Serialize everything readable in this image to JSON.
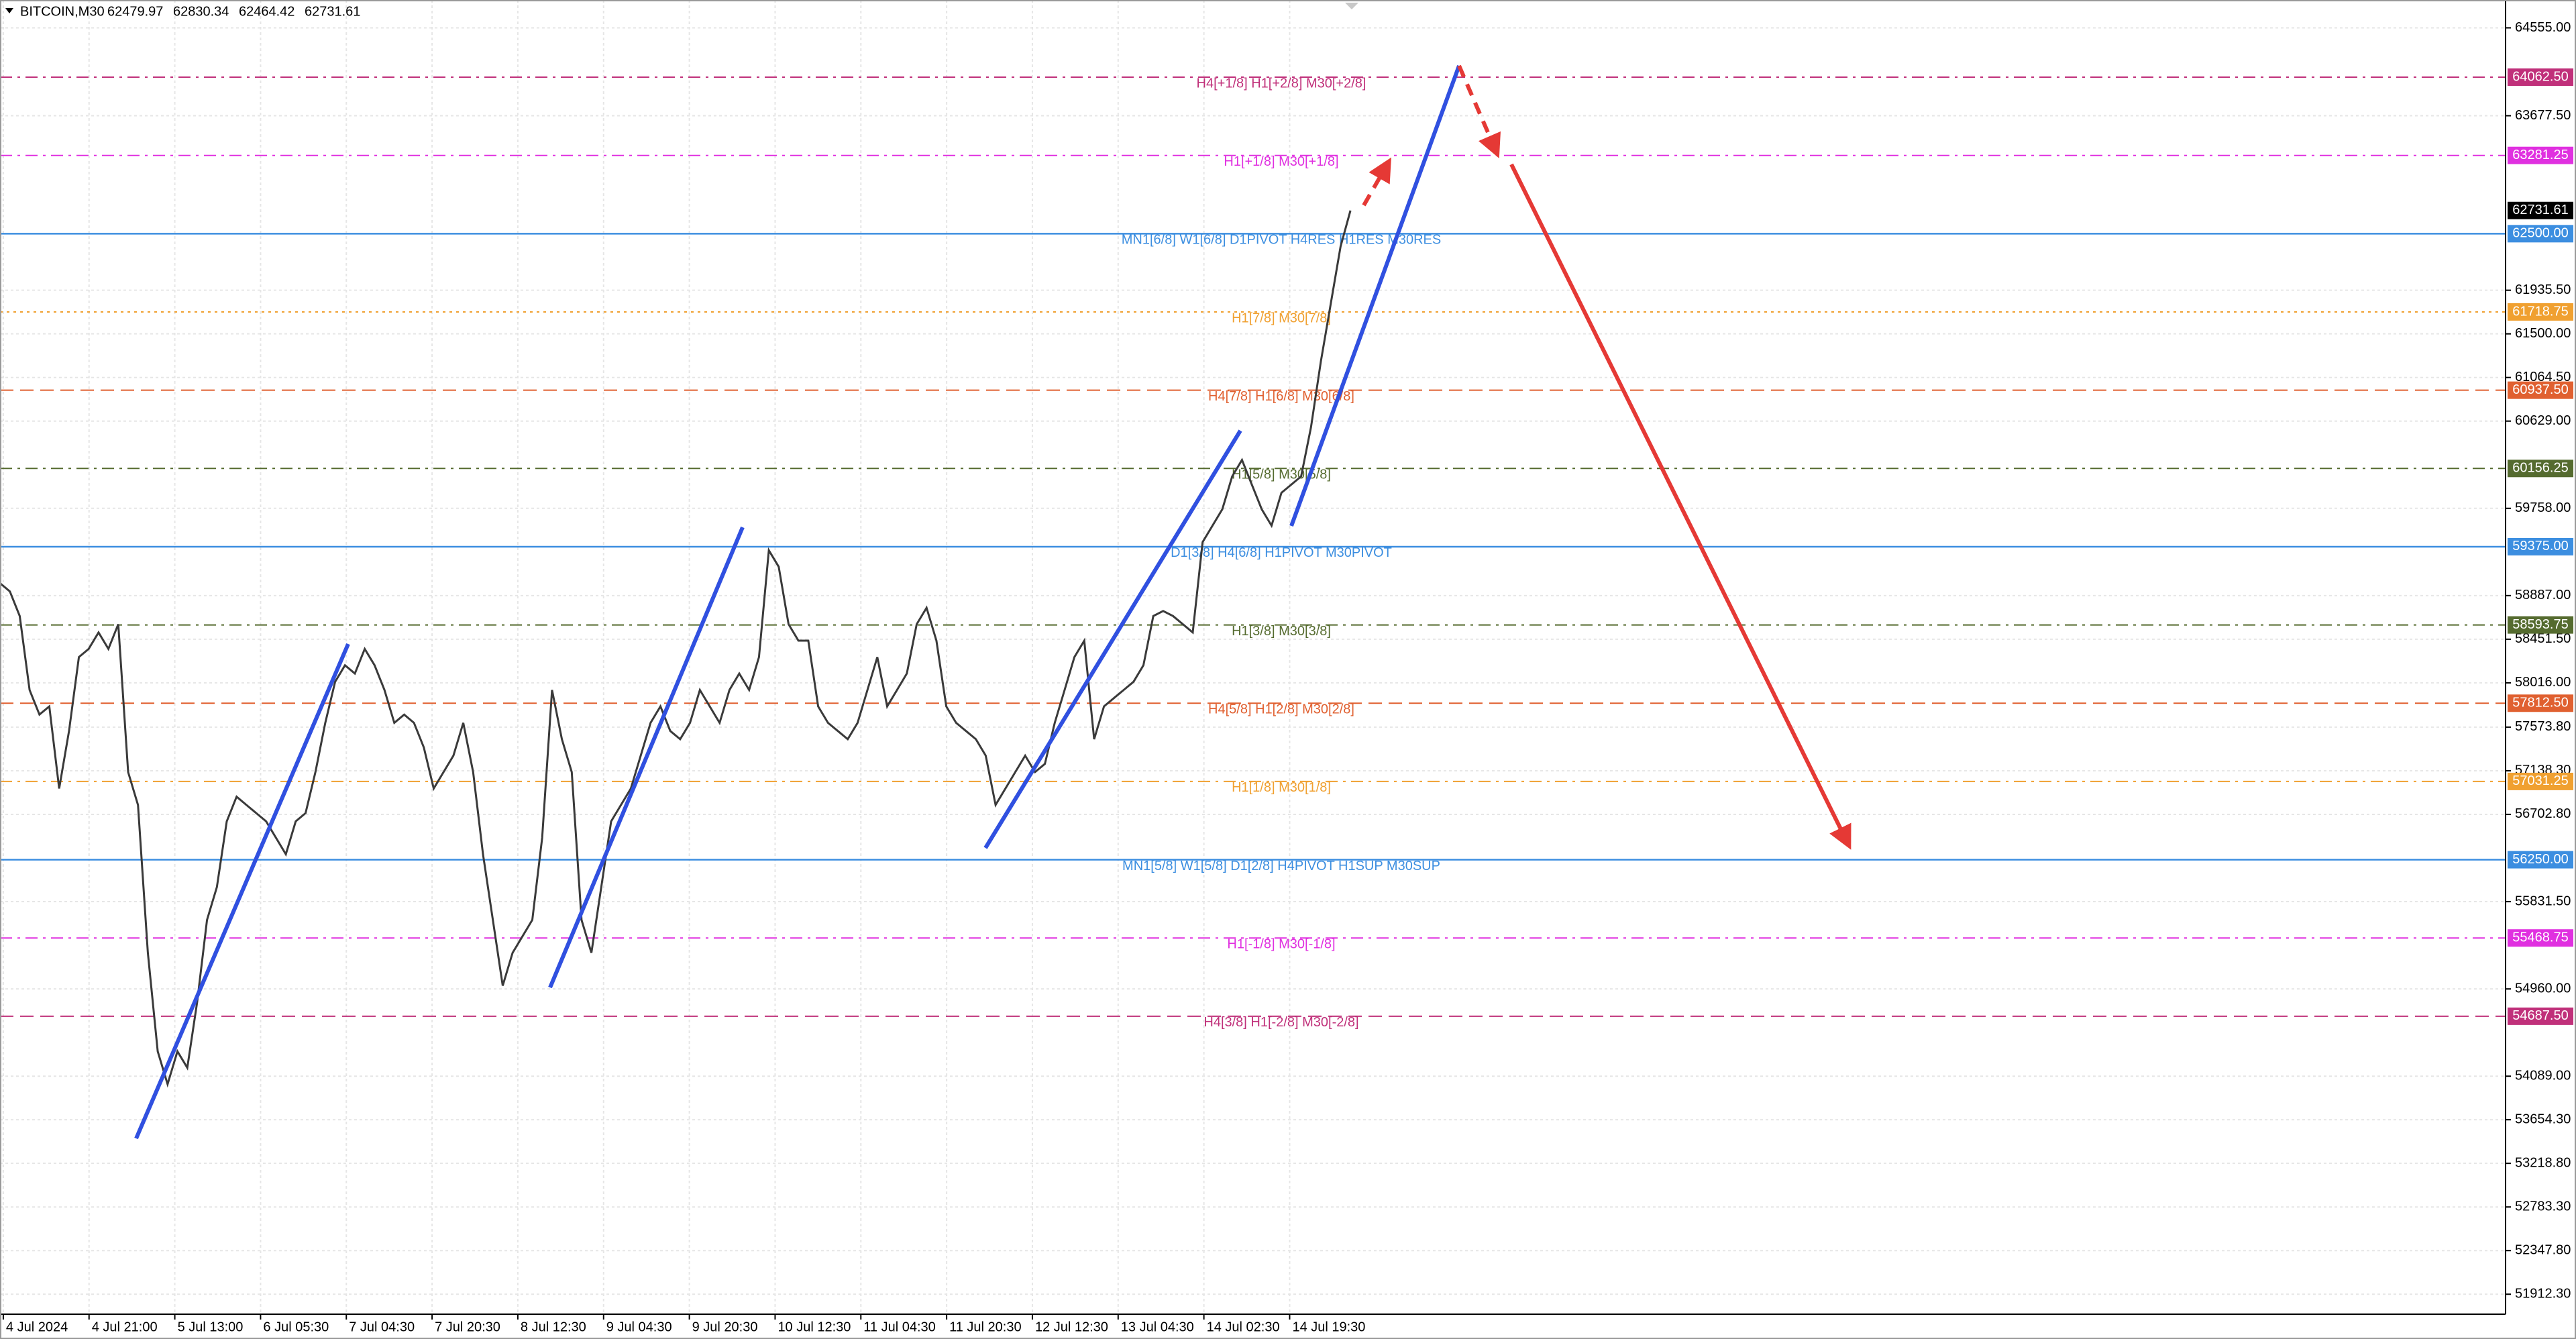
{
  "chart_data": {
    "type": "line",
    "symbol": "BITCOIN,M30",
    "ohlc": [
      62479.97,
      62830.34,
      62464.42,
      62731.61
    ],
    "series": [
      {
        "name": "BITCOIN",
        "color": "#3a3a3a",
        "values": [
          59011,
          58929,
          58683,
          57945,
          57699,
          57781,
          56961,
          57535,
          58273,
          58355,
          58519,
          58355,
          58601,
          57125,
          56797,
          55321,
          54337,
          54009,
          54337,
          54173,
          54829,
          55649,
          55977,
          56633,
          56879,
          56797,
          56715,
          56633,
          56469,
          56305,
          56633,
          56715,
          57125,
          57617,
          58027,
          58191,
          58109,
          58355,
          58191,
          57945,
          57617,
          57699,
          57617,
          57371,
          56961,
          57125,
          57289,
          57617,
          57125,
          56305,
          55649,
          54993,
          55321,
          55485,
          55649,
          56469,
          57945,
          57453,
          57125,
          55649,
          55321,
          55977,
          56633,
          56797,
          56961,
          57289,
          57617,
          57781,
          57535,
          57453,
          57617,
          57945,
          57781,
          57617,
          57945,
          58109,
          57945,
          58273,
          59339,
          59175,
          58601,
          58437,
          58437,
          57781,
          57617,
          57535,
          57453,
          57617,
          57945,
          58273,
          57781,
          57945,
          58109,
          58601,
          58765,
          58437,
          57781,
          57617,
          57535,
          57453,
          57289,
          56797,
          56961,
          57125,
          57289,
          57125,
          57207,
          57617,
          57945,
          58273,
          58437,
          57453,
          57781,
          57863,
          57945,
          58027,
          58191,
          58683,
          58733,
          58683,
          58601,
          58519,
          59421,
          59585,
          59749,
          60077,
          60241,
          59995,
          59749,
          59585,
          59913,
          59995,
          60077,
          60569,
          61225,
          61799,
          62373,
          62731.61
        ]
      }
    ],
    "last_price": 62731.61,
    "last_price_label": "62731.61",
    "xticks": [
      "4 Jul 2024",
      "4 Jul 21:00",
      "5 Jul 13:00",
      "6 Jul 05:30",
      "7 Jul 04:30",
      "7 Jul 20:30",
      "8 Jul 12:30",
      "9 Jul 04:30",
      "9 Jul 20:30",
      "10 Jul 12:30",
      "11 Jul 04:30",
      "11 Jul 20:30",
      "12 Jul 12:30",
      "13 Jul 04:30",
      "14 Jul 02:30",
      "14 Jul 19:30"
    ],
    "ylim": [
      51713,
      64833
    ],
    "yticks": [
      {
        "value": 64555,
        "label": "64555.00"
      },
      {
        "value": 63677.5,
        "label": "63677.50"
      },
      {
        "value": 61935.5,
        "label": "61935.50"
      },
      {
        "value": 61500,
        "label": "61500.00"
      },
      {
        "value": 61064.5,
        "label": "61064.50"
      },
      {
        "value": 60629,
        "label": "60629.00"
      },
      {
        "value": 59758,
        "label": "59758.00"
      },
      {
        "value": 58887,
        "label": "58887.00"
      },
      {
        "value": 58451.5,
        "label": "58451.50"
      },
      {
        "value": 58016,
        "label": "58016.00"
      },
      {
        "value": 57573.8,
        "label": "57573.80"
      },
      {
        "value": 57138.3,
        "label": "57138.30"
      },
      {
        "value": 56702.8,
        "label": "56702.80"
      },
      {
        "value": 55831.5,
        "label": "55831.50"
      },
      {
        "value": 54960,
        "label": "54960.00"
      },
      {
        "value": 54089,
        "label": "54089.00"
      },
      {
        "value": 53654.3,
        "label": "53654.30"
      },
      {
        "value": 53218.8,
        "label": "53218.80"
      },
      {
        "value": 52783.3,
        "label": "52783.30"
      },
      {
        "value": 52347.8,
        "label": "52347.80"
      },
      {
        "value": 51912.3,
        "label": "51912.30"
      }
    ],
    "grid": true,
    "levels": {
      "values": [
        64062.5,
        63281.25,
        62500,
        61718.75,
        60937.5,
        60156.25,
        59375,
        58593.75,
        57812.5,
        57031.25,
        56250,
        55468.75,
        54687.5
      ],
      "value_labels": [
        "64062.50",
        "63281.25",
        "62500.00",
        "61718.75",
        "60937.50",
        "60156.25",
        "59375.00",
        "58593.75",
        "57812.50",
        "57031.25",
        "56250.00",
        "55468.75",
        "54687.50"
      ],
      "labels": [
        "H4[+1/8] H1[+2/8] M30[+2/8]",
        "H1[+1/8] M30[+1/8]",
        "MN1[6/8] W1[6/8] D1PIVOT H4RES H1RES M30RES",
        "H1[7/8] M30[7/8]",
        "H4[7/8] H1[6/8] M30[6/8]",
        "H1[5/8] M30[5/8]",
        "D1[3/8] H4[6/8] H1PIVOT M30PIVOT",
        "H1[3/8] M30[3/8]",
        "H4[5/8] H1[2/8] M30[2/8]",
        "H1[1/8] M30[1/8]",
        "MN1[5/8] W1[5/8] D1[2/8] H4PIVOT H1SUP M30SUP",
        "H1[-1/8] M30[-1/8]",
        "H4[3/8] H1[-2/8] M30[-2/8]"
      ],
      "colors": [
        "#c0307a",
        "#e030e0",
        "#3c8ee0",
        "#f0a030",
        "#e06030",
        "#556b2f",
        "#3c8ee0",
        "#556b2f",
        "#e06030",
        "#f0a030",
        "#3c8ee0",
        "#e030e0",
        "#c0307a"
      ],
      "styles": [
        "dashdot",
        "dashdot",
        "solid",
        "dotted",
        "dashed",
        "dashdot",
        "solid",
        "dashdot",
        "dashed",
        "dashdot",
        "solid",
        "dashdot",
        "dashed"
      ]
    }
  }
}
